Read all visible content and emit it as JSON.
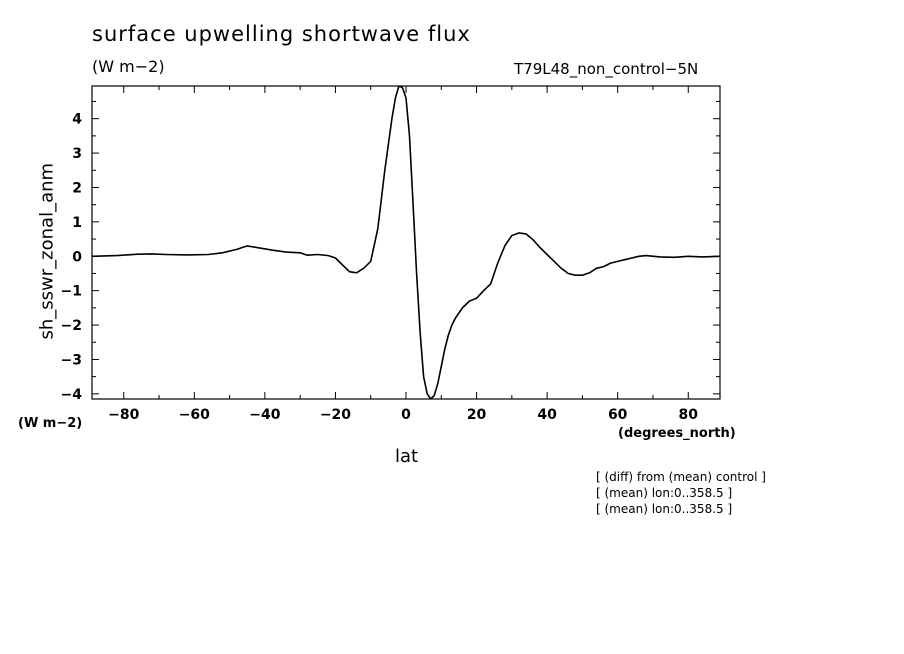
{
  "title": "surface upwelling shortwave flux",
  "units_top": "(W m−2)",
  "run_label": "T79L48_non_control−5N",
  "units_left": "(W m−2)",
  "x_units": "(degrees_north)",
  "notes": [
    "[ (diff) from (mean) control ]",
    "[ (mean) lon:0..358.5 ]",
    "[ (mean) lon:0..358.5 ]"
  ],
  "chart_data": {
    "type": "line",
    "xlabel": "lat",
    "ylabel": "sh_sswr_zonal_anm",
    "xlim": [
      -89,
      89
    ],
    "ylim": [
      -4.15,
      4.95
    ],
    "xticks": [
      -80,
      -60,
      -40,
      -20,
      0,
      20,
      40,
      60,
      80
    ],
    "xtick_labels": [
      "−80",
      "−60",
      "−40",
      "−20",
      "0",
      "20",
      "40",
      "60",
      "80"
    ],
    "yticks": [
      -4,
      -3,
      -2,
      -1,
      0,
      1,
      2,
      3,
      4
    ],
    "ytick_labels": [
      "−4",
      "−3",
      "−2",
      "−1",
      "0",
      "1",
      "2",
      "3",
      "4"
    ],
    "grid": false,
    "series": [
      {
        "x": [
          -89,
          -82,
          -76,
          -72,
          -68,
          -62,
          -56,
          -52,
          -48,
          -45,
          -42,
          -38,
          -34,
          -30,
          -28,
          -25,
          -22,
          -20,
          -18,
          -16,
          -14,
          -12,
          -10,
          -8,
          -6,
          -4,
          -3,
          -2,
          -1,
          0,
          1,
          2,
          3,
          4,
          5,
          6,
          7,
          8,
          9,
          10,
          11,
          12,
          13,
          14,
          16,
          18,
          20,
          22,
          24,
          26,
          28,
          30,
          32,
          34,
          36,
          38,
          40,
          42,
          44,
          46,
          48,
          50,
          52,
          54,
          56,
          58,
          60,
          62,
          64,
          66,
          68,
          72,
          76,
          80,
          84,
          89
        ],
        "y": [
          0.0,
          0.02,
          0.06,
          0.07,
          0.05,
          0.04,
          0.05,
          0.1,
          0.2,
          0.3,
          0.25,
          0.18,
          0.12,
          0.1,
          0.03,
          0.05,
          0.02,
          -0.05,
          -0.25,
          -0.45,
          -0.48,
          -0.35,
          -0.15,
          0.8,
          2.5,
          4.0,
          4.6,
          4.95,
          4.9,
          4.6,
          3.5,
          1.5,
          -0.5,
          -2.2,
          -3.5,
          -4.0,
          -4.15,
          -4.05,
          -3.7,
          -3.2,
          -2.7,
          -2.3,
          -2.0,
          -1.8,
          -1.5,
          -1.3,
          -1.22,
          -1.0,
          -0.8,
          -0.2,
          0.3,
          0.6,
          0.68,
          0.65,
          0.48,
          0.25,
          0.05,
          -0.15,
          -0.35,
          -0.5,
          -0.55,
          -0.55,
          -0.48,
          -0.35,
          -0.3,
          -0.2,
          -0.15,
          -0.1,
          -0.05,
          0.0,
          0.02,
          -0.02,
          -0.03,
          0.0,
          -0.02,
          0.0
        ]
      }
    ]
  }
}
